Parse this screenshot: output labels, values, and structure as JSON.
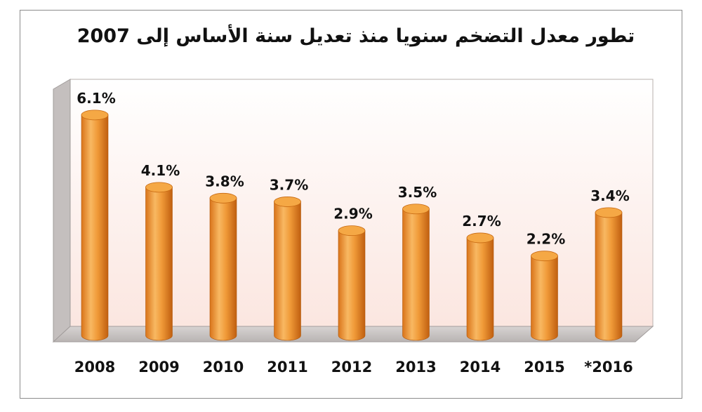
{
  "chart_data": {
    "type": "bar",
    "title": "تطور معدل التضخم سنويا منذ تعديل سنة الأساس إلى 2007",
    "categories": [
      "2008",
      "2009",
      "2010",
      "2011",
      "2012",
      "2013",
      "2014",
      "2015",
      "*2016"
    ],
    "values": [
      6.1,
      4.1,
      3.8,
      3.7,
      2.9,
      3.5,
      2.7,
      2.2,
      3.4
    ],
    "data_labels": [
      "6.1%",
      "4.1%",
      "3.8%",
      "3.7%",
      "2.9%",
      "3.5%",
      "2.7%",
      "2.2%",
      "3.4%"
    ],
    "ylim": [
      0,
      7
    ],
    "grid": false,
    "legend": "none",
    "bar_style": "3d-cylinder",
    "colors": {
      "bar_light": "#f7b15a",
      "bar_mid": "#ee8f2c",
      "bar_dark": "#c96612",
      "bar_top": "#f5a845",
      "back_wall": "#fdf1ed",
      "floor": "#c9c5c4",
      "side_wall": "#c9c5c4"
    }
  }
}
